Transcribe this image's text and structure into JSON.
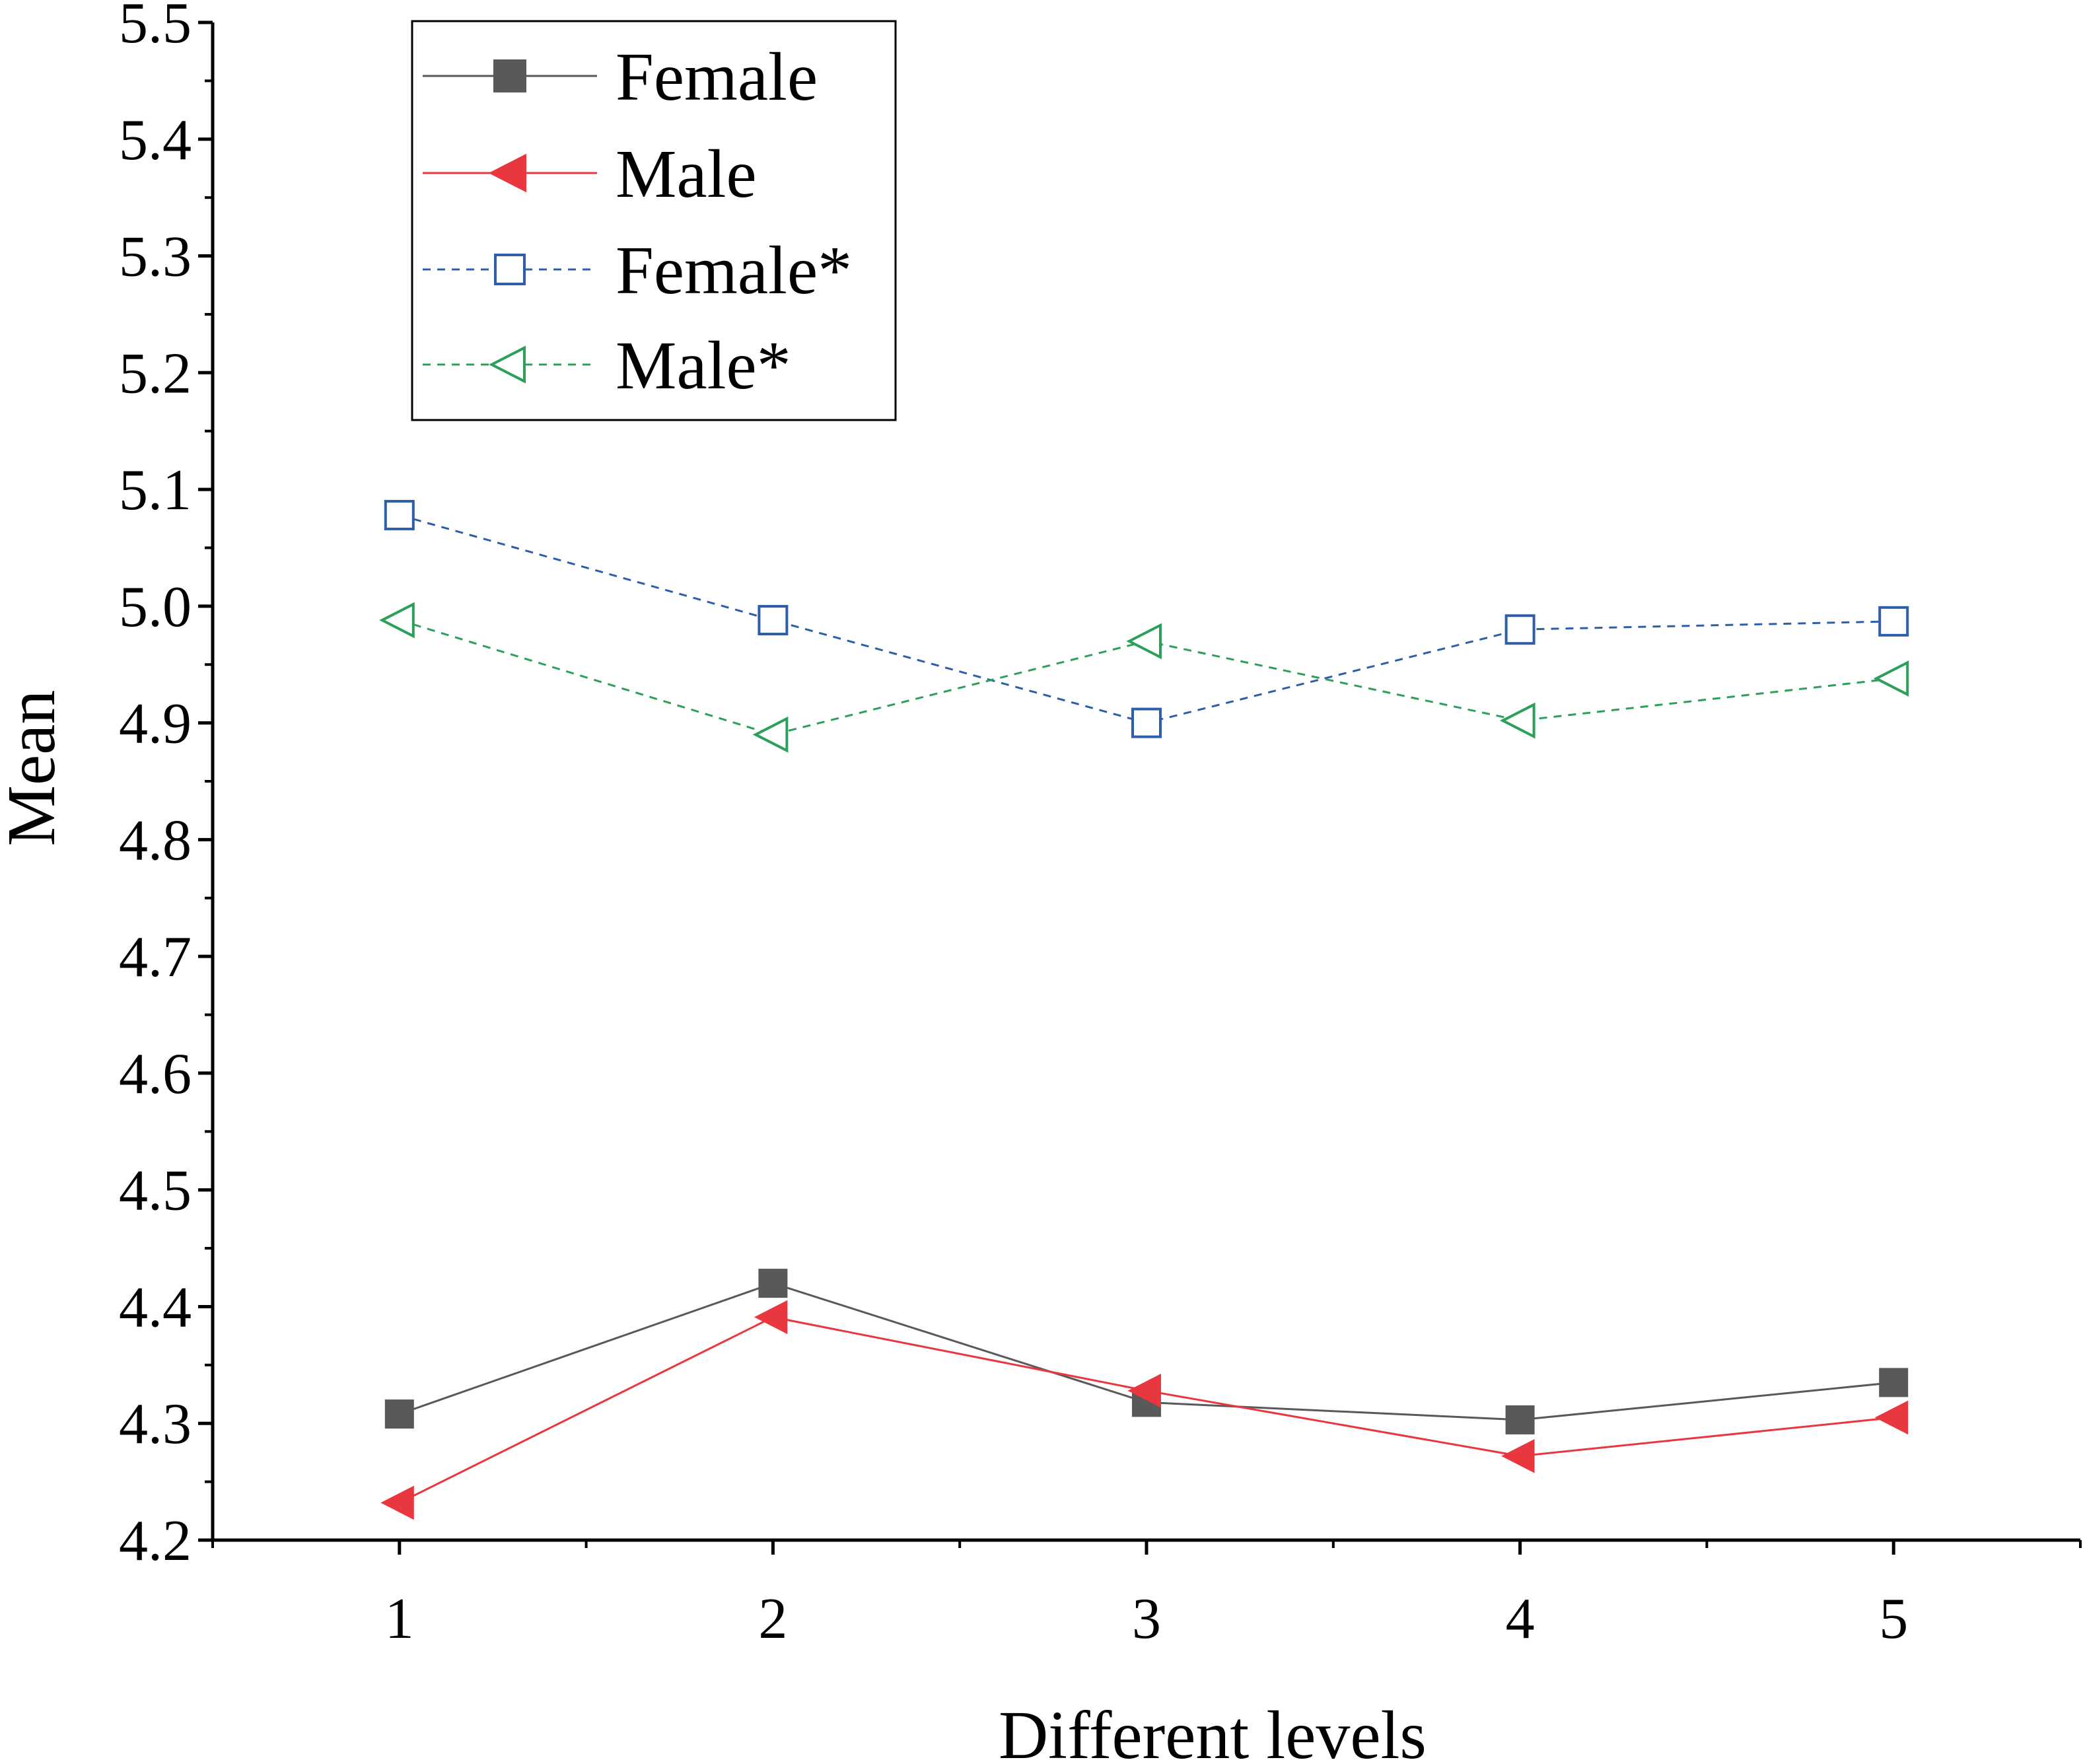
{
  "chart_data": {
    "type": "line",
    "title": "",
    "xlabel": "Different levels",
    "ylabel": "Mean",
    "x": [
      1,
      2,
      3,
      4,
      5
    ],
    "xlim": [
      0.5,
      5.5
    ],
    "ylim": [
      4.2,
      5.5
    ],
    "xticks": [
      "1",
      "2",
      "3",
      "4",
      "5"
    ],
    "yticks": [
      "4.2",
      "4.3",
      "4.4",
      "4.5",
      "4.6",
      "4.7",
      "4.8",
      "4.9",
      "5.0",
      "5.1",
      "5.2",
      "5.3",
      "5.4",
      "5.5"
    ],
    "grid": false,
    "legend_position": "top-left",
    "series": [
      {
        "name": "Female",
        "values": [
          4.308,
          4.42,
          4.318,
          4.303,
          4.335
        ],
        "color": "#595959",
        "marker": "square-filled",
        "line": "solid"
      },
      {
        "name": "Male",
        "values": [
          4.232,
          4.391,
          4.328,
          4.272,
          4.305
        ],
        "color": "#e8373f",
        "marker": "triangle-left-filled",
        "line": "solid"
      },
      {
        "name": "Female*",
        "values": [
          5.078,
          4.988,
          4.9,
          4.98,
          4.987
        ],
        "color": "#2e5eaa",
        "marker": "square-open",
        "line": "dashed"
      },
      {
        "name": "Male*",
        "values": [
          4.988,
          4.89,
          4.97,
          4.902,
          4.938
        ],
        "color": "#2ca05a",
        "marker": "triangle-left-open",
        "line": "dashed"
      }
    ]
  }
}
